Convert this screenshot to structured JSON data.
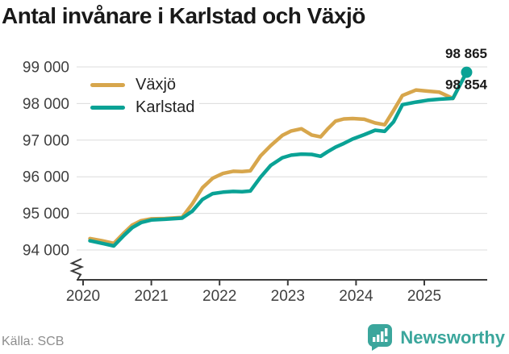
{
  "title": "Antal invånare i Karlstad och Växjö",
  "source": "Källa: SCB",
  "branding": {
    "name": "Newsworthy",
    "color": "#3ba69c"
  },
  "colors": {
    "vaxjo": "#d7a64c",
    "karlstad": "#0aa295",
    "grid": "#dcdcdc",
    "axis": "#3b3b3b",
    "tick_text": "#3f3f3f",
    "label_text": "#1a1a1a"
  },
  "chart_data": {
    "type": "line",
    "title": "Antal invånare i Karlstad och Växjö",
    "xlabel": "",
    "ylabel": "",
    "x_unit": "year (monthly population, SCB)",
    "grid": "horizontal",
    "axis_break": true,
    "legend_position": "top-left-inside",
    "xticks": [
      2020,
      2021,
      2022,
      2023,
      2024,
      2025
    ],
    "xtick_labels": [
      "2020",
      "2021",
      "2022",
      "2023",
      "2024",
      "2025"
    ],
    "yticks": [
      99000,
      98000,
      97000,
      96000,
      95000,
      94000
    ],
    "ytick_labels": [
      "99 000",
      "98 000",
      "97 000",
      "96 000",
      "95 000",
      "94 000"
    ],
    "xlim": [
      2019.9,
      2025.95
    ],
    "ylim": [
      93550,
      99250
    ],
    "series": [
      {
        "name": "Växjö",
        "color": "#d7a64c",
        "end_value": 98865,
        "end_label": "98 865",
        "end_dot": false,
        "points": [
          [
            2020.1,
            94310
          ],
          [
            2020.28,
            94250
          ],
          [
            2020.45,
            94180
          ],
          [
            2020.6,
            94470
          ],
          [
            2020.72,
            94680
          ],
          [
            2020.85,
            94800
          ],
          [
            2021.0,
            94850
          ],
          [
            2021.2,
            94860
          ],
          [
            2021.45,
            94890
          ],
          [
            2021.6,
            95260
          ],
          [
            2021.75,
            95700
          ],
          [
            2021.9,
            95960
          ],
          [
            2022.05,
            96090
          ],
          [
            2022.2,
            96150
          ],
          [
            2022.33,
            96140
          ],
          [
            2022.45,
            96160
          ],
          [
            2022.6,
            96570
          ],
          [
            2022.75,
            96850
          ],
          [
            2022.92,
            97130
          ],
          [
            2023.05,
            97250
          ],
          [
            2023.2,
            97310
          ],
          [
            2023.35,
            97140
          ],
          [
            2023.48,
            97090
          ],
          [
            2023.58,
            97300
          ],
          [
            2023.7,
            97520
          ],
          [
            2023.82,
            97580
          ],
          [
            2023.95,
            97590
          ],
          [
            2024.12,
            97570
          ],
          [
            2024.28,
            97470
          ],
          [
            2024.42,
            97420
          ],
          [
            2024.55,
            97810
          ],
          [
            2024.68,
            98220
          ],
          [
            2024.88,
            98370
          ],
          [
            2025.05,
            98340
          ],
          [
            2025.22,
            98310
          ],
          [
            2025.42,
            98140
          ],
          [
            2025.62,
            98865
          ]
        ]
      },
      {
        "name": "Karlstad",
        "color": "#0aa295",
        "end_value": 98854,
        "end_label": "98 854",
        "end_dot": true,
        "points": [
          [
            2020.1,
            94250
          ],
          [
            2020.28,
            94180
          ],
          [
            2020.45,
            94110
          ],
          [
            2020.6,
            94400
          ],
          [
            2020.72,
            94610
          ],
          [
            2020.85,
            94750
          ],
          [
            2021.0,
            94820
          ],
          [
            2021.2,
            94840
          ],
          [
            2021.45,
            94870
          ],
          [
            2021.6,
            95060
          ],
          [
            2021.75,
            95380
          ],
          [
            2021.9,
            95540
          ],
          [
            2022.05,
            95580
          ],
          [
            2022.2,
            95600
          ],
          [
            2022.33,
            95590
          ],
          [
            2022.45,
            95610
          ],
          [
            2022.6,
            95990
          ],
          [
            2022.75,
            96310
          ],
          [
            2022.92,
            96520
          ],
          [
            2023.05,
            96590
          ],
          [
            2023.2,
            96620
          ],
          [
            2023.35,
            96610
          ],
          [
            2023.48,
            96560
          ],
          [
            2023.58,
            96680
          ],
          [
            2023.7,
            96810
          ],
          [
            2023.82,
            96910
          ],
          [
            2023.95,
            97030
          ],
          [
            2024.12,
            97150
          ],
          [
            2024.28,
            97270
          ],
          [
            2024.42,
            97240
          ],
          [
            2024.55,
            97500
          ],
          [
            2024.68,
            97970
          ],
          [
            2024.88,
            98040
          ],
          [
            2025.05,
            98090
          ],
          [
            2025.22,
            98120
          ],
          [
            2025.42,
            98140
          ],
          [
            2025.62,
            98854
          ]
        ]
      }
    ]
  }
}
